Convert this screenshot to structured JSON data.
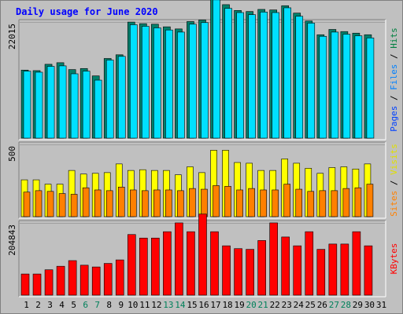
{
  "chart_data": {
    "type": "bar",
    "title": "Daily usage for June 2020",
    "x_labels": [
      "1",
      "2",
      "3",
      "4",
      "5",
      "6",
      "7",
      "8",
      "9",
      "10",
      "11",
      "12",
      "13",
      "14",
      "15",
      "16",
      "17",
      "18",
      "19",
      "20",
      "21",
      "22",
      "23",
      "24",
      "25",
      "26",
      "27",
      "28",
      "29",
      "30",
      "31"
    ],
    "weekend_days": [
      6,
      7,
      13,
      14,
      20,
      21,
      27,
      28
    ],
    "panels": [
      {
        "name": "hits_files_pages",
        "max_label": "22015",
        "ymax": 22015,
        "axis_label_parts": [
          {
            "text": "Pages",
            "color": "#0040ff"
          },
          {
            "text": " / ",
            "color": "#000000"
          },
          {
            "text": "Files",
            "color": "#0080ff"
          },
          {
            "text": " / ",
            "color": "#000000"
          },
          {
            "text": "Hits",
            "color": "#008040"
          }
        ],
        "series": [
          {
            "name": "Hits",
            "color": "#00806b",
            "values": [
              12900,
              12800,
              14000,
              14300,
              13000,
              13200,
              11800,
              15100,
              15800,
              22000,
              21700,
              21600,
              21100,
              20700,
              22100,
              22400,
              26900,
              25300,
              24200,
              24000,
              24400,
              24300,
              25100,
              23700,
              22200,
              19600,
              20600,
              20200,
              19900,
              19600
            ]
          },
          {
            "name": "Files",
            "color": "#00e0ff",
            "values": [
              12700,
              12500,
              13600,
              13700,
              12200,
              12700,
              11000,
              14800,
              15500,
              21500,
              21200,
              20900,
              20500,
              20100,
              21600,
              21900,
              26200,
              24600,
              23800,
              23400,
              23900,
              23800,
              24700,
              23100,
              21800,
              19300,
              20100,
              19700,
              19400,
              19000
            ]
          },
          {
            "name": "Pages",
            "color": "#0000c0",
            "values": [
              0,
              0,
              0,
              0,
              0,
              0,
              0,
              0,
              0,
              0,
              0,
              0,
              0,
              0,
              0,
              0,
              0,
              0,
              0,
              0,
              0,
              0,
              0,
              0,
              0,
              0,
              0,
              0,
              0,
              0
            ]
          }
        ]
      },
      {
        "name": "visits_sites",
        "max_label": "500",
        "ymax": 500,
        "axis_label_parts": [
          {
            "text": "Sites",
            "color": "#ff8000"
          },
          {
            "text": " / ",
            "color": "#000000"
          },
          {
            "text": "Visits",
            "color": "#e0e000"
          }
        ],
        "series": [
          {
            "name": "Visits",
            "color": "#ffff00",
            "values": [
              255,
              255,
              225,
              225,
              320,
              295,
              300,
              305,
              365,
              320,
              325,
              320,
              320,
              290,
              345,
              305,
              460,
              460,
              375,
              370,
              320,
              320,
              400,
              370,
              335,
              300,
              340,
              345,
              330,
              365
            ]
          },
          {
            "name": "Sites",
            "color": "#ff8000",
            "values": [
              170,
              180,
              175,
              160,
              155,
              200,
              185,
              180,
              205,
              185,
              180,
              185,
              185,
              180,
              195,
              190,
              215,
              210,
              185,
              195,
              185,
              185,
              225,
              190,
              175,
              180,
              180,
              195,
              200,
              225
            ]
          }
        ]
      },
      {
        "name": "kbytes",
        "max_label": "204843",
        "ymax": 204843,
        "axis_label_parts": [
          {
            "text": "KBytes",
            "color": "#ff0000"
          }
        ],
        "series": [
          {
            "name": "KBytes",
            "color": "#ff0000",
            "values": [
              60000,
              60000,
              72000,
              82000,
              98000,
              85000,
              80000,
              90000,
              100000,
              172000,
              162000,
              162000,
              180000,
              205000,
              180000,
              230000,
              180000,
              140000,
              132000,
              130000,
              155000,
              205000,
              165000,
              140000,
              180000,
              130000,
              145000,
              145000,
              180000,
              140000
            ]
          }
        ]
      }
    ]
  }
}
